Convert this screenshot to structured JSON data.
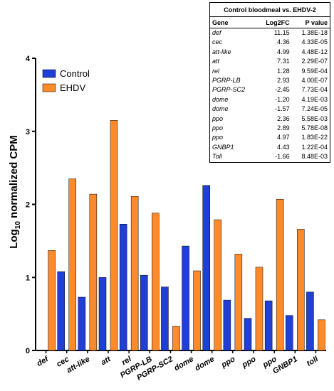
{
  "chart_data": {
    "type": "bar",
    "ylabel": "Log10 normalized CPM",
    "ylabel_main": "Log",
    "ylabel_sub": "10",
    "ylabel_rest": " normalized CPM",
    "ylim": [
      0,
      4
    ],
    "yticks": [
      "0",
      "1",
      "2",
      "3",
      "4"
    ],
    "categories": [
      "def",
      "cec",
      "att-like",
      "att",
      "rel",
      "PGRP-LB",
      "PGRP-SC2",
      "dome",
      "dome",
      "ppo",
      "ppo",
      "ppo",
      "GNBP1",
      "toll"
    ],
    "series": [
      {
        "name": "Control",
        "color": "#1f3fd6",
        "values": [
          0.0,
          1.08,
          0.73,
          1.0,
          1.73,
          1.03,
          0.87,
          1.43,
          2.26,
          0.69,
          0.44,
          0.68,
          0.48,
          0.8
        ]
      },
      {
        "name": "EHDV",
        "color": "#ff8a2a",
        "values": [
          1.37,
          2.35,
          2.14,
          3.15,
          2.11,
          1.88,
          0.33,
          1.09,
          1.79,
          1.32,
          1.14,
          2.07,
          1.66,
          0.42
        ]
      }
    ],
    "legend_position": "top-left"
  },
  "stats_table": {
    "title": "Control bloodmeal vs. EHDV-2",
    "headers": [
      "Gene",
      "Log2FC",
      "P value"
    ],
    "rows": [
      [
        "def",
        "11.15",
        "1.38E-18"
      ],
      [
        "cec",
        "4.36",
        "4.33E-05"
      ],
      [
        "att-like",
        "4.99",
        "4.48E-12"
      ],
      [
        "att",
        "7.31",
        "2.29E-07"
      ],
      [
        "rel",
        "1.28",
        "9.59E-04"
      ],
      [
        "PGRP-LB",
        "2.93",
        "4.00E-07"
      ],
      [
        "PGRP-SC2",
        "-2.45",
        "7.73E-04"
      ],
      [
        "dome",
        "-1.20",
        "4.19E-03"
      ],
      [
        "dome",
        "-1.57",
        "7.24E-05"
      ],
      [
        "ppo",
        "2.36",
        "5.58E-03"
      ],
      [
        "ppo",
        "2.89",
        "5.78E-08"
      ],
      [
        "ppo",
        "4.97",
        "1.83E-22"
      ],
      [
        "GNBP1",
        "4.43",
        "1.22E-04"
      ],
      [
        "Toll",
        "-1.66",
        "8.48E-03"
      ]
    ]
  }
}
